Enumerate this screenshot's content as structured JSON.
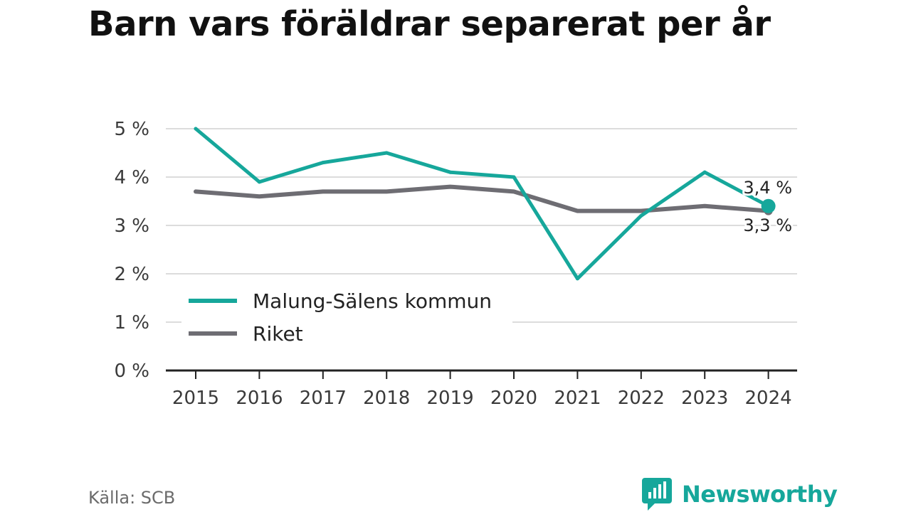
{
  "header": {
    "title": "Barn vars föräldrar separerat per år"
  },
  "chart_data": {
    "type": "line",
    "title": "Barn vars föräldrar separerat per år",
    "x": [
      "2015",
      "2016",
      "2017",
      "2018",
      "2019",
      "2020",
      "2021",
      "2022",
      "2023",
      "2024"
    ],
    "series": [
      {
        "name": "Malung-Sälens kommun",
        "color": "#16a79b",
        "values": [
          5.0,
          3.9,
          4.3,
          4.5,
          4.1,
          4.0,
          1.9,
          3.2,
          4.1,
          3.4
        ],
        "end_label": "3,4 %"
      },
      {
        "name": "Riket",
        "color": "#6e6d73",
        "values": [
          3.7,
          3.6,
          3.7,
          3.7,
          3.8,
          3.7,
          3.3,
          3.3,
          3.4,
          3.3
        ],
        "end_label": "3,3 %"
      }
    ],
    "yticks": [
      0,
      1,
      2,
      3,
      4,
      5
    ],
    "ytick_labels": [
      "0 %",
      "1 %",
      "2 %",
      "3 %",
      "4 %",
      "5 %"
    ],
    "ylim": [
      0,
      5
    ],
    "grid": true,
    "legend": "bottom-left"
  },
  "footer": {
    "source": "Källa: SCB",
    "brand": "Newsworthy"
  }
}
